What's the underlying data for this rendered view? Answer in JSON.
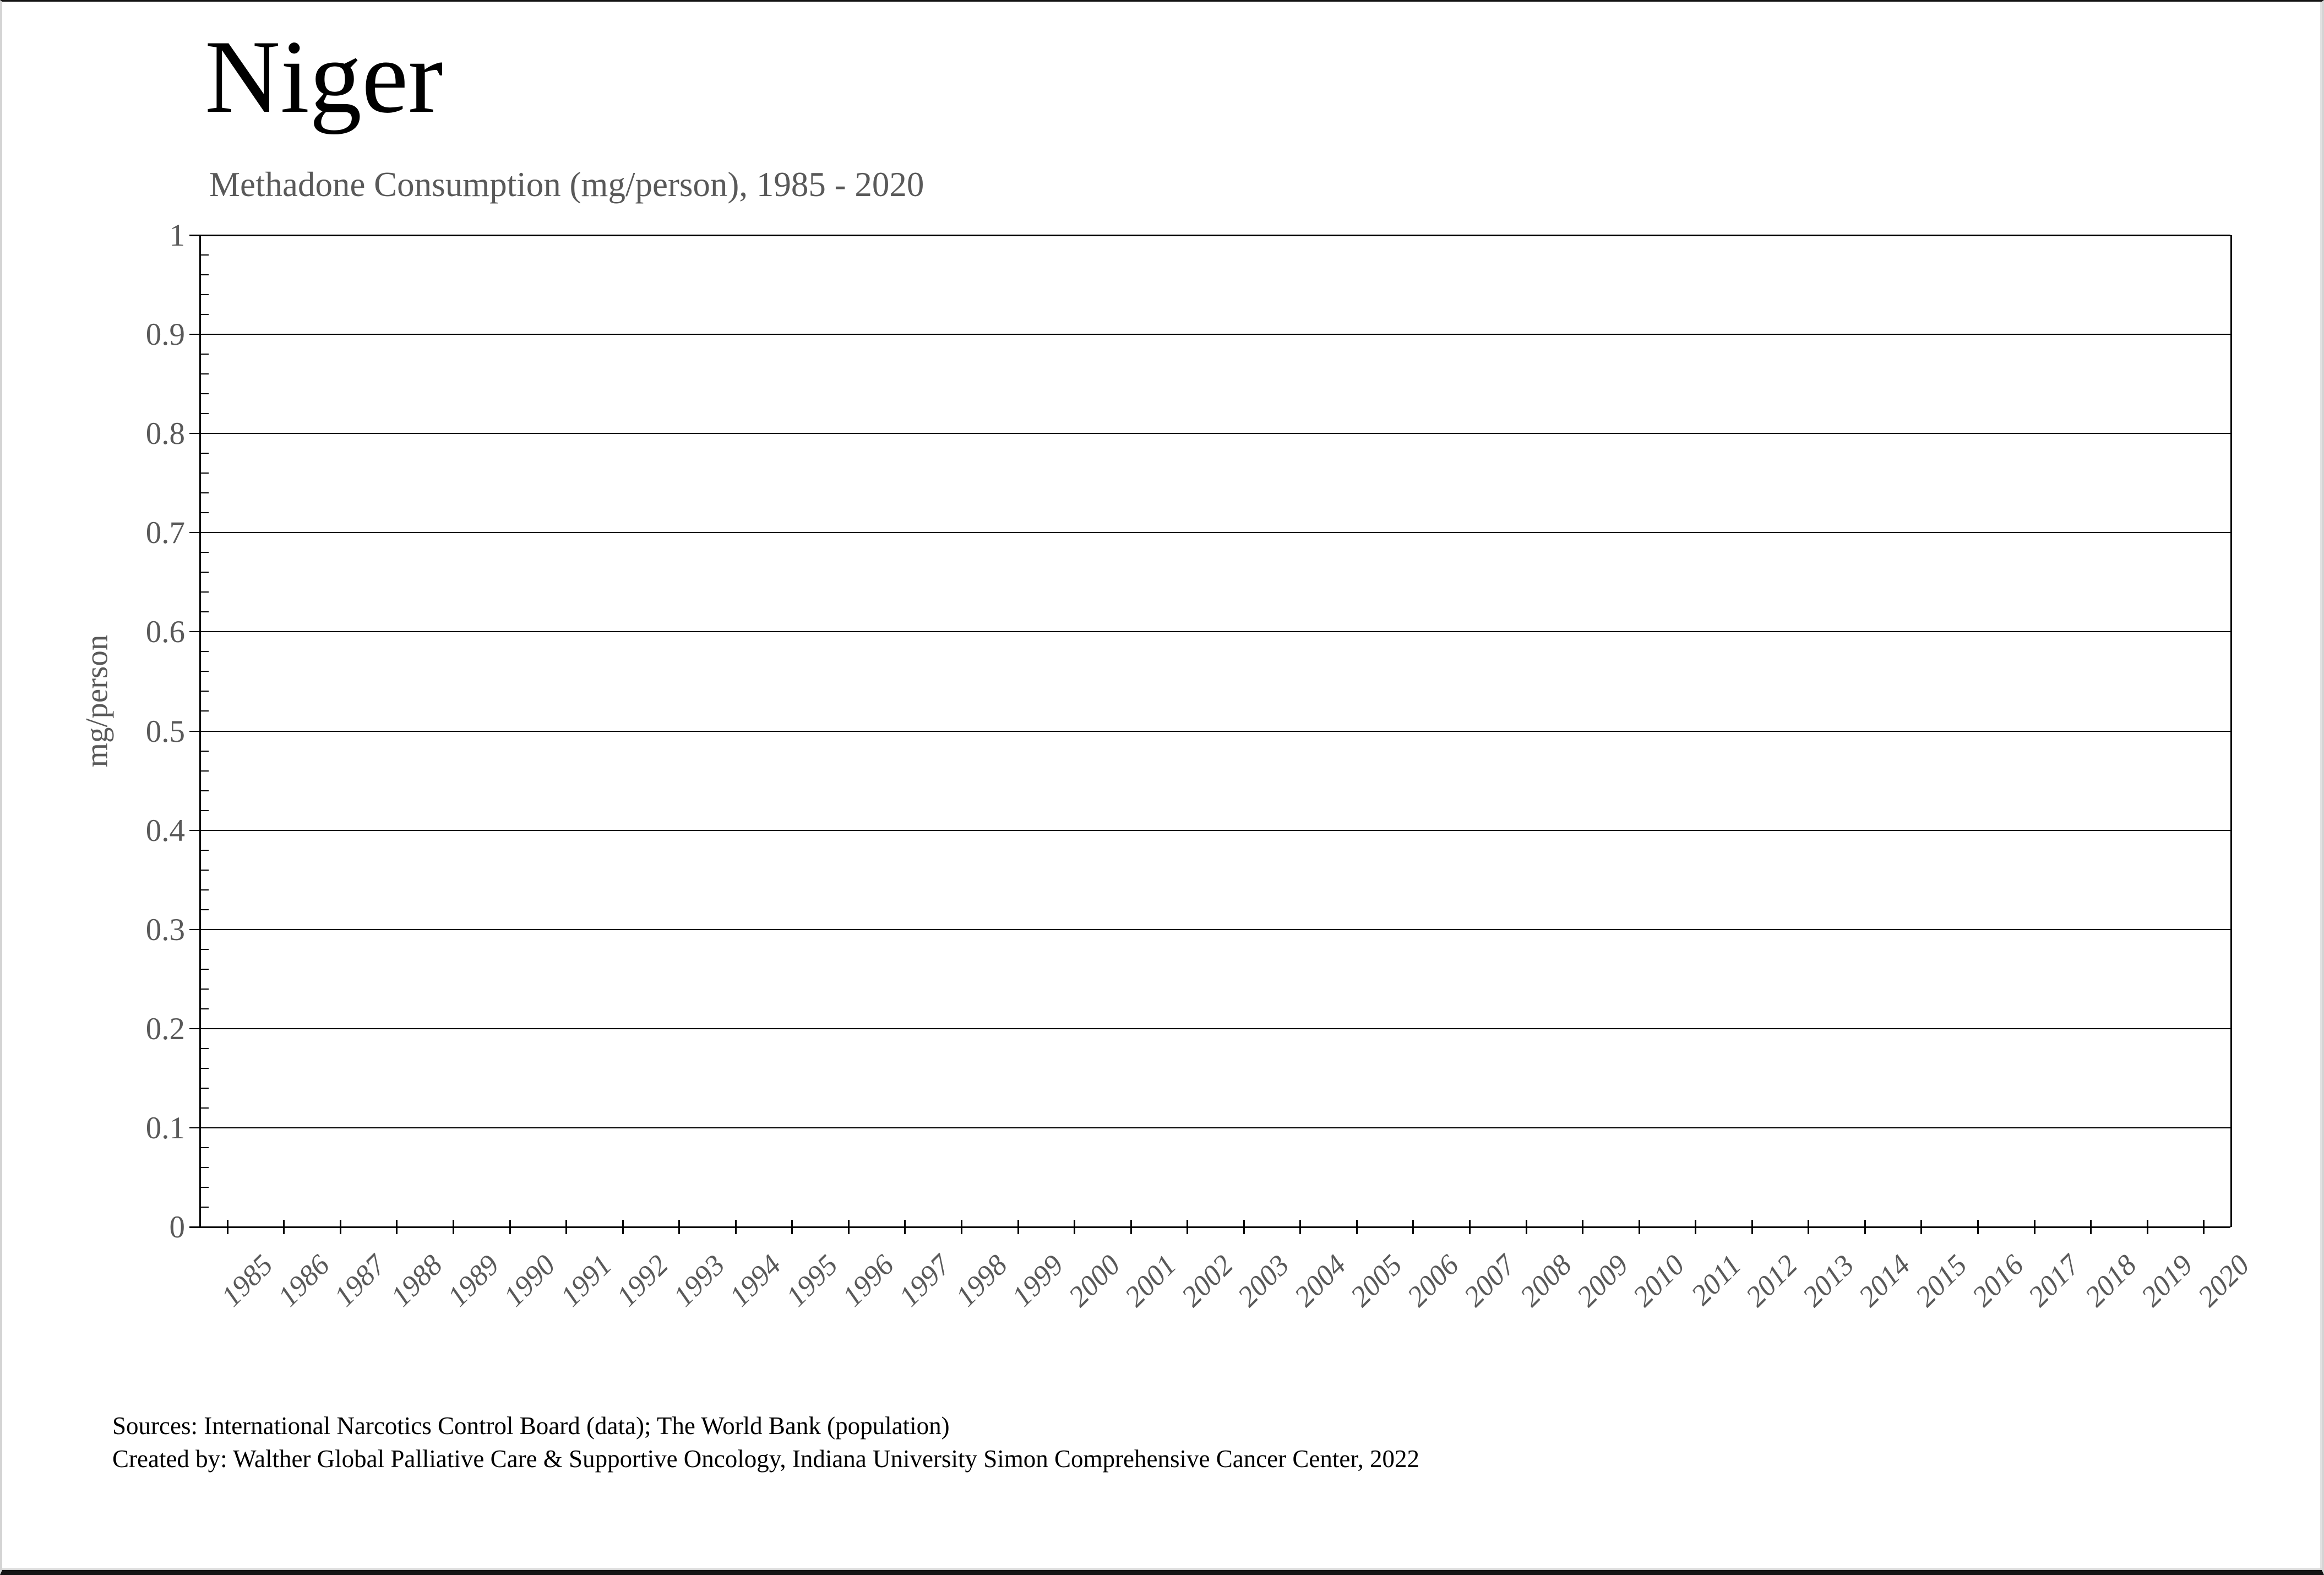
{
  "page": {
    "title": "Niger",
    "subtitle": "Methadone Consumption (mg/person), 1985 - 2020",
    "footer": {
      "line1": "Sources: International Narcotics Control Board (data); The World Bank (population)",
      "line2": "Created by: Walther Global Palliative Care & Supportive Oncology, Indiana University Simon Comprehensive Cancer Center, 2022"
    }
  },
  "chart_data": {
    "type": "line",
    "title": "Niger",
    "subtitle": "Methadone Consumption (mg/person), 1985 - 2020",
    "xlabel": "",
    "ylabel": "mg/person",
    "ylim": [
      0,
      1
    ],
    "y_major_step": 0.1,
    "y_minor_step": 0.02,
    "y_tick_labels": [
      "0",
      "0.1",
      "0.2",
      "0.3",
      "0.4",
      "0.5",
      "0.6",
      "0.7",
      "0.8",
      "0.9",
      "1"
    ],
    "categories": [
      1985,
      1986,
      1987,
      1988,
      1989,
      1990,
      1991,
      1992,
      1993,
      1994,
      1995,
      1996,
      1997,
      1998,
      1999,
      2000,
      2001,
      2002,
      2003,
      2004,
      2005,
      2006,
      2007,
      2008,
      2009,
      2010,
      2011,
      2012,
      2013,
      2014,
      2015,
      2016,
      2017,
      2018,
      2019,
      2020
    ],
    "series": [
      {
        "name": "Methadone Consumption (mg/person)",
        "values": [
          0,
          0,
          0,
          0,
          0,
          0,
          0,
          0,
          0,
          0,
          0,
          0,
          0,
          0,
          0,
          0,
          0,
          0,
          0,
          0,
          0,
          0,
          0,
          0,
          0,
          0,
          0,
          0,
          0,
          0,
          0,
          0,
          0,
          0,
          0,
          0
        ]
      }
    ],
    "grid": "horizontal-major-on",
    "legend": "none",
    "annotation": "Plot area is empty: no non-zero data points are visible for any year"
  },
  "colors": {
    "background": "#ffffff",
    "text": "#000000",
    "text_muted": "#595959",
    "grid": "#000000",
    "axis": "#000000",
    "frame_dark": "#141414",
    "frame_light": "#d4d4d4"
  }
}
